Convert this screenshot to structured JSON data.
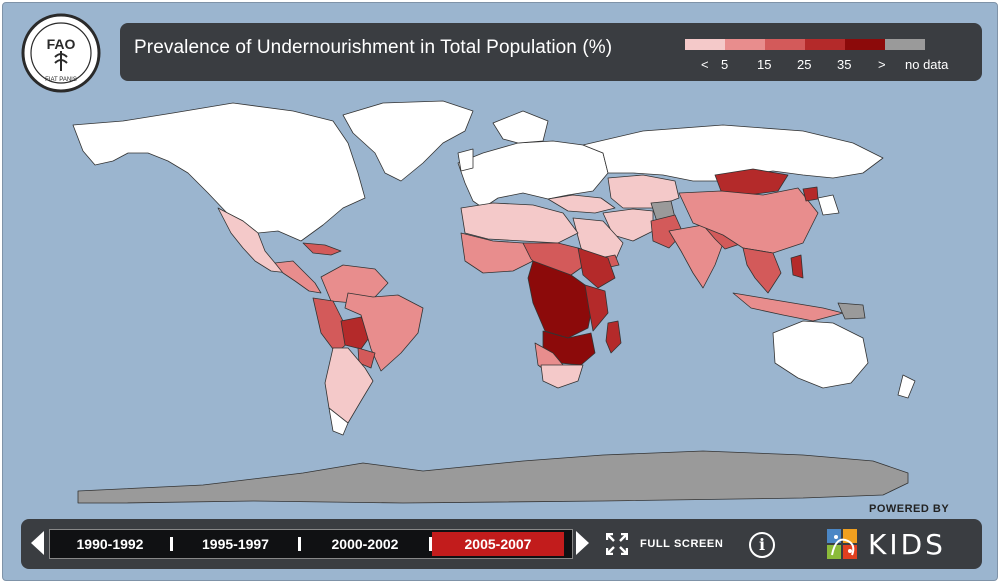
{
  "header": {
    "logo_text": "FAO",
    "logo_motto": "FIAT PANIS",
    "title": "Prevalence of Undernourishment in Total Population (%)"
  },
  "legend": {
    "swatches": [
      "#f4c9c9",
      "#e88d8d",
      "#d35a5a",
      "#b42a2a",
      "#8c0a0a",
      "#9a9a9a"
    ],
    "labels": [
      "<",
      "5",
      "15",
      "25",
      "35",
      ">",
      "no data"
    ]
  },
  "map": {
    "ocean_color": "#9bb5cf",
    "land_no_data_color": "#9a9a9a",
    "land_default_color": "#ffffff",
    "border_color": "#333333"
  },
  "powered_by": "POWERED BY",
  "timeline": {
    "periods": [
      "1990-1992",
      "1995-1997",
      "2000-2002",
      "2005-2007"
    ],
    "active_index": 3,
    "active_color": "#c21c1c"
  },
  "controls": {
    "fullscreen_label": "FULL SCREEN",
    "info_label": "i",
    "brand": "KIDS"
  }
}
